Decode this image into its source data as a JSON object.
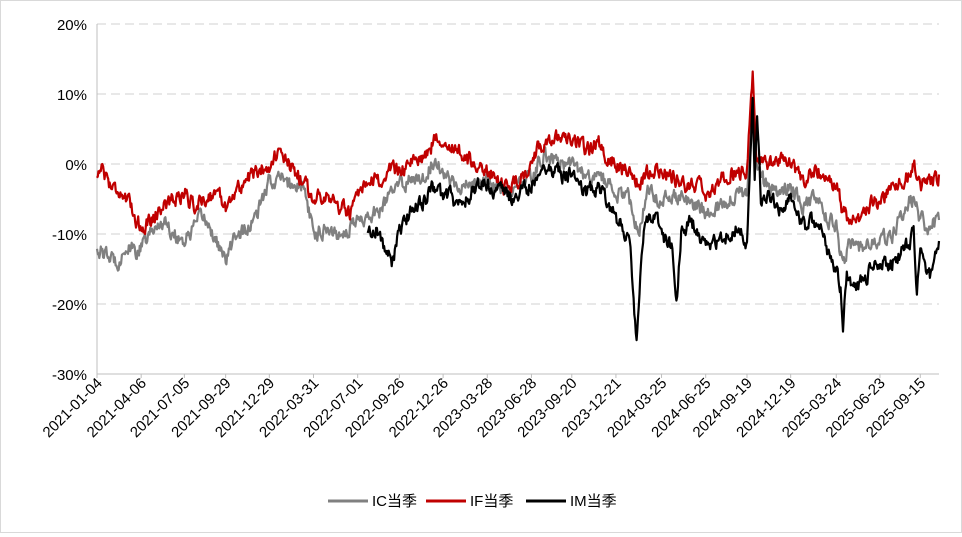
{
  "chart_data": {
    "type": "line",
    "title": "",
    "xlabel": "",
    "ylabel": "",
    "ylim": [
      -30,
      20
    ],
    "y_ticks": [
      20,
      10,
      0,
      -10,
      -20,
      -30
    ],
    "y_tick_labels": [
      "20%",
      "10%",
      "0%",
      "-10%",
      "-20%",
      "-30%"
    ],
    "x_range": [
      "2021-01-04",
      "2025-10-24"
    ],
    "x_tick_labels": [
      "2021-01-04",
      "2021-04-06",
      "2021-07-05",
      "2021-09-29",
      "2021-12-29",
      "2022-03-31",
      "2022-07-01",
      "2022-09-26",
      "2022-12-26",
      "2023-03-28",
      "2023-06-28",
      "2023-09-20",
      "2023-12-21",
      "2024-03-25",
      "2024-06-25",
      "2024-09-19",
      "2024-12-19",
      "2025-03-24",
      "2025-06-23",
      "2025-09-15"
    ],
    "grid": "horizontal dashed",
    "legend_position": "bottom",
    "series": [
      {
        "name": "IC当季",
        "color": "#808080",
        "points": [
          [
            "2021-01-04",
            -12
          ],
          [
            "2021-01-20",
            -13
          ],
          [
            "2021-02-15",
            -14
          ],
          [
            "2021-03-05",
            -12
          ],
          [
            "2021-03-25",
            -12.5
          ],
          [
            "2021-04-06",
            -12
          ],
          [
            "2021-04-25",
            -10
          ],
          [
            "2021-05-20",
            -8
          ],
          [
            "2021-06-15",
            -10
          ],
          [
            "2021-07-05",
            -11
          ],
          [
            "2021-07-25",
            -9
          ],
          [
            "2021-08-15",
            -7.5
          ],
          [
            "2021-09-10",
            -11
          ],
          [
            "2021-09-29",
            -14
          ],
          [
            "2021-10-20",
            -10
          ],
          [
            "2021-11-20",
            -9
          ],
          [
            "2021-12-05",
            -7
          ],
          [
            "2021-12-29",
            -2.5
          ],
          [
            "2022-01-20",
            -2
          ],
          [
            "2022-02-10",
            -3
          ],
          [
            "2022-03-10",
            -3
          ],
          [
            "2022-03-31",
            -10
          ],
          [
            "2022-04-25",
            -9
          ],
          [
            "2022-05-20",
            -10
          ],
          [
            "2022-06-15",
            -9
          ],
          [
            "2022-07-01",
            -8
          ],
          [
            "2022-07-25",
            -7.5
          ],
          [
            "2022-08-20",
            -6.5
          ],
          [
            "2022-09-10",
            -4
          ],
          [
            "2022-09-26",
            -3
          ],
          [
            "2022-10-25",
            -2
          ],
          [
            "2022-11-20",
            -1.5
          ],
          [
            "2022-12-10",
            1
          ],
          [
            "2022-12-26",
            -1
          ],
          [
            "2023-01-20",
            -3
          ],
          [
            "2023-02-15",
            -3
          ],
          [
            "2023-03-10",
            -3
          ],
          [
            "2023-03-28",
            -2.5
          ],
          [
            "2023-04-25",
            -3.5
          ],
          [
            "2023-05-20",
            -4
          ],
          [
            "2023-06-10",
            -3
          ],
          [
            "2023-06-28",
            -1.5
          ],
          [
            "2023-07-25",
            1
          ],
          [
            "2023-08-20",
            0.5
          ],
          [
            "2023-09-05",
            0
          ],
          [
            "2023-09-20",
            0
          ],
          [
            "2023-10-20",
            -2
          ],
          [
            "2023-11-15",
            -1.5
          ],
          [
            "2023-12-05",
            -3
          ],
          [
            "2023-12-21",
            -4
          ],
          [
            "2024-01-15",
            -5
          ],
          [
            "2024-02-05",
            -10
          ],
          [
            "2024-02-25",
            -4
          ],
          [
            "2024-03-25",
            -5
          ],
          [
            "2024-04-20",
            -4.5
          ],
          [
            "2024-05-15",
            -5
          ],
          [
            "2024-06-10",
            -6
          ],
          [
            "2024-06-25",
            -7
          ],
          [
            "2024-07-20",
            -6
          ],
          [
            "2024-08-15",
            -5
          ],
          [
            "2024-09-05",
            -4
          ],
          [
            "2024-09-19",
            -5
          ],
          [
            "2024-09-26",
            4
          ],
          [
            "2024-10-01",
            9
          ],
          [
            "2024-10-08",
            1
          ],
          [
            "2024-10-25",
            -3
          ],
          [
            "2024-11-20",
            -4
          ],
          [
            "2024-12-10",
            -3.5
          ],
          [
            "2024-12-19",
            -3
          ],
          [
            "2025-01-15",
            -6
          ],
          [
            "2025-02-10",
            -5
          ],
          [
            "2025-03-05",
            -8
          ],
          [
            "2025-03-24",
            -9
          ],
          [
            "2025-04-07",
            -15
          ],
          [
            "2025-04-20",
            -11
          ],
          [
            "2025-05-15",
            -12
          ],
          [
            "2025-06-05",
            -11
          ],
          [
            "2025-06-23",
            -11
          ],
          [
            "2025-07-20",
            -10
          ],
          [
            "2025-08-15",
            -6
          ],
          [
            "2025-09-01",
            -5
          ],
          [
            "2025-09-15",
            -8
          ],
          [
            "2025-10-05",
            -9
          ],
          [
            "2025-10-24",
            -8
          ]
        ]
      },
      {
        "name": "IF当季",
        "color": "#c00000",
        "points": [
          [
            "2021-01-04",
            -2
          ],
          [
            "2021-01-12",
            0
          ],
          [
            "2021-02-01",
            -3
          ],
          [
            "2021-02-25",
            -4
          ],
          [
            "2021-03-20",
            -7
          ],
          [
            "2021-04-06",
            -9
          ],
          [
            "2021-04-25",
            -8
          ],
          [
            "2021-05-20",
            -6
          ],
          [
            "2021-06-15",
            -5
          ],
          [
            "2021-07-05",
            -4
          ],
          [
            "2021-07-25",
            -6
          ],
          [
            "2021-08-15",
            -5
          ],
          [
            "2021-09-10",
            -4
          ],
          [
            "2021-09-29",
            -6
          ],
          [
            "2021-10-20",
            -4
          ],
          [
            "2021-11-15",
            -2
          ],
          [
            "2021-12-05",
            -1
          ],
          [
            "2021-12-29",
            0
          ],
          [
            "2022-01-15",
            1.5
          ],
          [
            "2022-02-05",
            0
          ],
          [
            "2022-03-05",
            -2
          ],
          [
            "2022-03-31",
            -5
          ],
          [
            "2022-04-25",
            -4
          ],
          [
            "2022-05-20",
            -6
          ],
          [
            "2022-06-15",
            -7
          ],
          [
            "2022-07-01",
            -5
          ],
          [
            "2022-07-25",
            -3
          ],
          [
            "2022-08-20",
            -2
          ],
          [
            "2022-09-10",
            -1
          ],
          [
            "2022-09-26",
            -0.5
          ],
          [
            "2022-10-25",
            0
          ],
          [
            "2022-11-20",
            1.5
          ],
          [
            "2022-12-10",
            3.5
          ],
          [
            "2022-12-26",
            4
          ],
          [
            "2023-01-20",
            2
          ],
          [
            "2023-02-15",
            0.5
          ],
          [
            "2023-03-10",
            0
          ],
          [
            "2023-03-28",
            -1
          ],
          [
            "2023-04-25",
            -3
          ],
          [
            "2023-05-20",
            -3
          ],
          [
            "2023-06-10",
            -2
          ],
          [
            "2023-06-28",
            1
          ],
          [
            "2023-07-25",
            3
          ],
          [
            "2023-08-20",
            4
          ],
          [
            "2023-09-05",
            3
          ],
          [
            "2023-09-20",
            3
          ],
          [
            "2023-10-20",
            2
          ],
          [
            "2023-11-15",
            3
          ],
          [
            "2023-12-05",
            1
          ],
          [
            "2023-12-21",
            0
          ],
          [
            "2024-01-15",
            -1
          ],
          [
            "2024-02-05",
            -3
          ],
          [
            "2024-02-25",
            -1
          ],
          [
            "2024-03-25",
            -1
          ],
          [
            "2024-04-20",
            -2
          ],
          [
            "2024-05-15",
            -3
          ],
          [
            "2024-06-10",
            -3
          ],
          [
            "2024-06-25",
            -5
          ],
          [
            "2024-07-20",
            -3
          ],
          [
            "2024-08-15",
            -1
          ],
          [
            "2024-09-05",
            -1.5
          ],
          [
            "2024-09-19",
            -1
          ],
          [
            "2024-09-26",
            8
          ],
          [
            "2024-10-01",
            13
          ],
          [
            "2024-10-08",
            1
          ],
          [
            "2024-10-25",
            0
          ],
          [
            "2024-11-20",
            0
          ],
          [
            "2024-12-10",
            0.5
          ],
          [
            "2024-12-19",
            0
          ],
          [
            "2025-01-15",
            -2
          ],
          [
            "2025-02-10",
            -1
          ],
          [
            "2025-03-05",
            -2
          ],
          [
            "2025-03-24",
            -3
          ],
          [
            "2025-04-07",
            -7
          ],
          [
            "2025-04-20",
            -8
          ],
          [
            "2025-05-15",
            -8
          ],
          [
            "2025-06-05",
            -6
          ],
          [
            "2025-06-23",
            -5
          ],
          [
            "2025-07-20",
            -3
          ],
          [
            "2025-08-15",
            -2
          ],
          [
            "2025-09-01",
            0.5
          ],
          [
            "2025-09-15",
            -3
          ],
          [
            "2025-10-05",
            -2.5
          ],
          [
            "2025-10-24",
            -1.5
          ]
        ]
      },
      {
        "name": "IM当季",
        "color": "#000000",
        "points": [
          [
            "2022-07-22",
            -10
          ],
          [
            "2022-08-10",
            -9
          ],
          [
            "2022-08-25",
            -12
          ],
          [
            "2022-09-10",
            -14
          ],
          [
            "2022-09-26",
            -10
          ],
          [
            "2022-10-25",
            -6
          ],
          [
            "2022-11-20",
            -5
          ],
          [
            "2022-12-10",
            -3
          ],
          [
            "2022-12-26",
            -5
          ],
          [
            "2023-01-10",
            -4
          ],
          [
            "2023-01-20",
            -6
          ],
          [
            "2023-02-15",
            -5
          ],
          [
            "2023-03-10",
            -3
          ],
          [
            "2023-03-28",
            -3
          ],
          [
            "2023-04-25",
            -4
          ],
          [
            "2023-05-20",
            -5
          ],
          [
            "2023-06-10",
            -4
          ],
          [
            "2023-06-28",
            -3
          ],
          [
            "2023-07-25",
            0
          ],
          [
            "2023-08-20",
            -1
          ],
          [
            "2023-09-05",
            -2
          ],
          [
            "2023-09-20",
            -1
          ],
          [
            "2023-10-20",
            -4
          ],
          [
            "2023-11-15",
            -3
          ],
          [
            "2023-12-05",
            -5
          ],
          [
            "2023-12-21",
            -8
          ],
          [
            "2024-01-15",
            -10
          ],
          [
            "2024-01-22",
            -14
          ],
          [
            "2024-02-02",
            -26
          ],
          [
            "2024-02-08",
            -18
          ],
          [
            "2024-02-20",
            -8
          ],
          [
            "2024-03-10",
            -7
          ],
          [
            "2024-03-25",
            -10
          ],
          [
            "2024-04-15",
            -12
          ],
          [
            "2024-04-25",
            -20
          ],
          [
            "2024-05-05",
            -10
          ],
          [
            "2024-05-25",
            -8
          ],
          [
            "2024-06-10",
            -10
          ],
          [
            "2024-06-25",
            -12
          ],
          [
            "2024-07-20",
            -11
          ],
          [
            "2024-08-15",
            -10
          ],
          [
            "2024-09-05",
            -9
          ],
          [
            "2024-09-19",
            -11
          ],
          [
            "2024-09-26",
            0
          ],
          [
            "2024-10-01",
            9
          ],
          [
            "2024-10-05",
            -1
          ],
          [
            "2024-10-10",
            8
          ],
          [
            "2024-10-18",
            -6
          ],
          [
            "2024-11-05",
            -5
          ],
          [
            "2024-11-25",
            -6
          ],
          [
            "2024-12-10",
            -5
          ],
          [
            "2024-12-19",
            -5
          ],
          [
            "2025-01-15",
            -9
          ],
          [
            "2025-02-10",
            -8
          ],
          [
            "2025-03-05",
            -12
          ],
          [
            "2025-03-24",
            -15
          ],
          [
            "2025-04-02",
            -18
          ],
          [
            "2025-04-07",
            -23
          ],
          [
            "2025-04-15",
            -16
          ],
          [
            "2025-04-25",
            -18
          ],
          [
            "2025-05-15",
            -17
          ],
          [
            "2025-06-05",
            -15
          ],
          [
            "2025-06-23",
            -14
          ],
          [
            "2025-07-20",
            -14
          ],
          [
            "2025-08-15",
            -12
          ],
          [
            "2025-09-01",
            -10
          ],
          [
            "2025-09-08",
            -18
          ],
          [
            "2025-09-15",
            -13
          ],
          [
            "2025-09-25",
            -15
          ],
          [
            "2025-10-05",
            -16
          ],
          [
            "2025-10-24",
            -11
          ]
        ]
      }
    ]
  }
}
